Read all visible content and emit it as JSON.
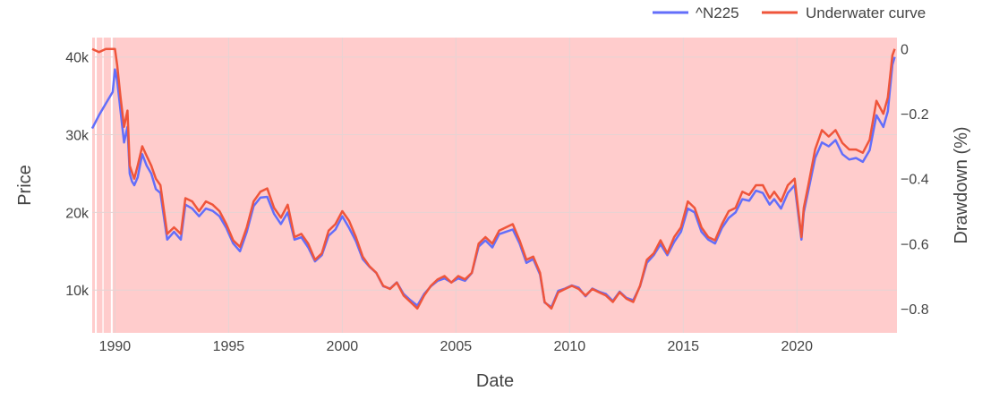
{
  "chart_data": {
    "type": "line",
    "title": "",
    "xlabel": "Date",
    "ylabel": "Price",
    "y2label": "Drawdown (%)",
    "legend_position": "top-right",
    "grid": true,
    "xlim": [
      1989.0,
      2024.4
    ],
    "ylim": [
      4500,
      42500
    ],
    "y2lim": [
      -0.875,
      0.035
    ],
    "x_ticks": [
      1990,
      1995,
      2000,
      2005,
      2010,
      2015,
      2020
    ],
    "x_tick_labels": [
      "1990",
      "1995",
      "2000",
      "2005",
      "2010",
      "2015",
      "2020"
    ],
    "y_ticks": [
      10000,
      20000,
      30000,
      40000
    ],
    "y_tick_labels": [
      "10k",
      "20k",
      "30k",
      "40k"
    ],
    "y2_ticks": [
      0,
      -0.2,
      -0.4,
      -0.6,
      -0.8
    ],
    "y2_tick_labels": [
      "0",
      "−0.2",
      "−0.4",
      "−0.6",
      "−0.8"
    ],
    "series": [
      {
        "name": "^N225",
        "color": "#636efa",
        "axis": "y",
        "x": [
          1989.0,
          1989.3,
          1989.6,
          1989.9,
          1990.0,
          1990.1,
          1990.25,
          1990.4,
          1990.55,
          1990.65,
          1990.75,
          1990.85,
          1991.0,
          1991.2,
          1991.4,
          1991.6,
          1991.8,
          1992.0,
          1992.3,
          1992.6,
          1992.9,
          1993.1,
          1993.4,
          1993.7,
          1994.0,
          1994.3,
          1994.6,
          1994.9,
          1995.2,
          1995.5,
          1995.8,
          1996.1,
          1996.4,
          1996.7,
          1997.0,
          1997.3,
          1997.6,
          1997.9,
          1998.2,
          1998.5,
          1998.8,
          1999.1,
          1999.4,
          1999.7,
          2000.0,
          2000.3,
          2000.6,
          2000.9,
          2001.2,
          2001.5,
          2001.8,
          2002.1,
          2002.4,
          2002.7,
          2003.0,
          2003.3,
          2003.6,
          2003.9,
          2004.2,
          2004.5,
          2004.8,
          2005.1,
          2005.4,
          2005.7,
          2006.0,
          2006.3,
          2006.6,
          2006.9,
          2007.2,
          2007.5,
          2007.8,
          2008.1,
          2008.4,
          2008.7,
          2008.9,
          2009.2,
          2009.5,
          2009.8,
          2010.1,
          2010.4,
          2010.7,
          2011.0,
          2011.3,
          2011.6,
          2011.9,
          2012.2,
          2012.5,
          2012.8,
          2013.1,
          2013.4,
          2013.7,
          2014.0,
          2014.3,
          2014.6,
          2014.9,
          2015.2,
          2015.5,
          2015.8,
          2016.1,
          2016.4,
          2016.7,
          2017.0,
          2017.3,
          2017.6,
          2017.9,
          2018.2,
          2018.5,
          2018.8,
          2019.0,
          2019.3,
          2019.6,
          2019.9,
          2020.2,
          2020.3,
          2020.5,
          2020.8,
          2021.1,
          2021.4,
          2021.7,
          2022.0,
          2022.3,
          2022.6,
          2022.9,
          2023.2,
          2023.5,
          2023.8,
          2024.0,
          2024.2,
          2024.3
        ],
        "values": [
          30800,
          32500,
          34000,
          35500,
          38400,
          37000,
          33000,
          29000,
          31000,
          25000,
          24000,
          23500,
          24500,
          27500,
          26000,
          25000,
          23000,
          22500,
          16500,
          17500,
          16500,
          21000,
          20500,
          19500,
          20500,
          20200,
          19500,
          18000,
          16000,
          15000,
          17500,
          20800,
          21900,
          22000,
          19800,
          18500,
          20000,
          16500,
          16800,
          15500,
          13700,
          14500,
          17000,
          17800,
          19500,
          18000,
          16300,
          14000,
          13000,
          12200,
          10500,
          10200,
          11000,
          9500,
          8700,
          8000,
          9500,
          10500,
          11200,
          11500,
          11000,
          11500,
          11200,
          12200,
          15600,
          16400,
          15500,
          17200,
          17500,
          17800,
          16000,
          13500,
          14000,
          12000,
          8400,
          7800,
          9900,
          10200,
          10600,
          10300,
          9200,
          10200,
          9800,
          9500,
          8600,
          9800,
          9000,
          8700,
          10500,
          13500,
          14500,
          15900,
          14500,
          16200,
          17500,
          20500,
          20000,
          17500,
          16500,
          16000,
          18000,
          19300,
          20000,
          21700,
          21500,
          22800,
          22500,
          21000,
          21700,
          20500,
          22500,
          23500,
          16500,
          20000,
          22800,
          27000,
          29000,
          28500,
          29300,
          27500,
          26800,
          27000,
          26500,
          28000,
          32500,
          31000,
          33000,
          39000,
          40000
        ]
      },
      {
        "name": "Underwater curve",
        "color": "#ef553b",
        "axis": "y2",
        "x": [
          1989.0,
          1989.3,
          1989.6,
          1989.9,
          1990.0,
          1990.1,
          1990.25,
          1990.4,
          1990.55,
          1990.65,
          1990.75,
          1990.85,
          1991.0,
          1991.2,
          1991.4,
          1991.6,
          1991.8,
          1992.0,
          1992.3,
          1992.6,
          1992.9,
          1993.1,
          1993.4,
          1993.7,
          1994.0,
          1994.3,
          1994.6,
          1994.9,
          1995.2,
          1995.5,
          1995.8,
          1996.1,
          1996.4,
          1996.7,
          1997.0,
          1997.3,
          1997.6,
          1997.9,
          1998.2,
          1998.5,
          1998.8,
          1999.1,
          1999.4,
          1999.7,
          2000.0,
          2000.3,
          2000.6,
          2000.9,
          2001.2,
          2001.5,
          2001.8,
          2002.1,
          2002.4,
          2002.7,
          2003.0,
          2003.3,
          2003.6,
          2003.9,
          2004.2,
          2004.5,
          2004.8,
          2005.1,
          2005.4,
          2005.7,
          2006.0,
          2006.3,
          2006.6,
          2006.9,
          2007.2,
          2007.5,
          2007.8,
          2008.1,
          2008.4,
          2008.7,
          2008.9,
          2009.2,
          2009.5,
          2009.8,
          2010.1,
          2010.4,
          2010.7,
          2011.0,
          2011.3,
          2011.6,
          2011.9,
          2012.2,
          2012.5,
          2012.8,
          2013.1,
          2013.4,
          2013.7,
          2014.0,
          2014.3,
          2014.6,
          2014.9,
          2015.2,
          2015.5,
          2015.8,
          2016.1,
          2016.4,
          2016.7,
          2017.0,
          2017.3,
          2017.6,
          2017.9,
          2018.2,
          2018.5,
          2018.8,
          2019.0,
          2019.3,
          2019.6,
          2019.9,
          2020.2,
          2020.3,
          2020.5,
          2020.8,
          2021.1,
          2021.4,
          2021.7,
          2022.0,
          2022.3,
          2022.6,
          2022.9,
          2023.2,
          2023.5,
          2023.8,
          2024.0,
          2024.2,
          2024.3
        ],
        "values": [
          0,
          -0.01,
          0,
          0,
          0,
          -0.05,
          -0.15,
          -0.24,
          -0.19,
          -0.36,
          -0.38,
          -0.4,
          -0.36,
          -0.3,
          -0.33,
          -0.36,
          -0.4,
          -0.42,
          -0.57,
          -0.55,
          -0.57,
          -0.46,
          -0.47,
          -0.5,
          -0.47,
          -0.48,
          -0.5,
          -0.54,
          -0.59,
          -0.61,
          -0.55,
          -0.47,
          -0.44,
          -0.43,
          -0.49,
          -0.52,
          -0.48,
          -0.58,
          -0.57,
          -0.6,
          -0.65,
          -0.63,
          -0.56,
          -0.54,
          -0.5,
          -0.53,
          -0.58,
          -0.64,
          -0.67,
          -0.69,
          -0.73,
          -0.74,
          -0.72,
          -0.76,
          -0.78,
          -0.8,
          -0.76,
          -0.73,
          -0.71,
          -0.7,
          -0.72,
          -0.7,
          -0.71,
          -0.69,
          -0.6,
          -0.58,
          -0.6,
          -0.56,
          -0.55,
          -0.54,
          -0.59,
          -0.65,
          -0.64,
          -0.69,
          -0.78,
          -0.8,
          -0.75,
          -0.74,
          -0.73,
          -0.74,
          -0.76,
          -0.74,
          -0.75,
          -0.76,
          -0.78,
          -0.75,
          -0.77,
          -0.78,
          -0.73,
          -0.65,
          -0.63,
          -0.59,
          -0.63,
          -0.58,
          -0.55,
          -0.47,
          -0.49,
          -0.55,
          -0.58,
          -0.59,
          -0.54,
          -0.5,
          -0.49,
          -0.44,
          -0.45,
          -0.42,
          -0.42,
          -0.46,
          -0.44,
          -0.47,
          -0.42,
          -0.4,
          -0.58,
          -0.49,
          -0.42,
          -0.31,
          -0.25,
          -0.27,
          -0.25,
          -0.29,
          -0.31,
          -0.31,
          -0.32,
          -0.28,
          -0.16,
          -0.2,
          -0.15,
          -0.02,
          0
        ]
      }
    ],
    "shaded_regions": [
      {
        "x0": 1989.0,
        "x1": 1989.12
      },
      {
        "x0": 1989.2,
        "x1": 1989.45
      },
      {
        "x0": 1989.5,
        "x1": 1989.82
      },
      {
        "x0": 1989.9,
        "x1": 2024.4
      }
    ],
    "shade_color": "#ffcccc"
  }
}
